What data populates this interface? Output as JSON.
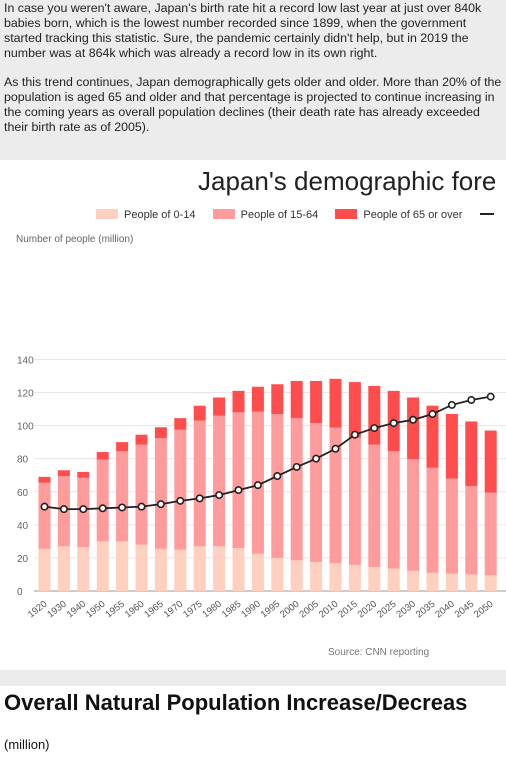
{
  "intro": {
    "paragraph1": "In case you weren't aware, Japan's birth rate hit a record low last year at just over 840k babies born, which is the lowest number recorded since 1899, when the government started tracking this statistic. Sure, the pandemic certainly didn't help, but in 2019 the number was at 864k which was already a record low in its own right.",
    "paragraph2": "As this trend continues, Japan demographically gets older and older. More than 20% of the population is aged 65 and older and that percentage is projected to continue increasing in the coming years as overall population declines (their death rate has already exceeded their birth rate as of 2005)."
  },
  "chart_data": {
    "type": "bar",
    "title": "Japan's demographic fore",
    "ylabel": "Number of people (million)",
    "source": "Source: CNN reporting",
    "ylim": [
      0,
      140
    ],
    "yticks": [
      0,
      20,
      40,
      60,
      80,
      100,
      120,
      140
    ],
    "stacked": true,
    "categories": [
      "1920",
      "1930",
      "1940",
      "1950",
      "1955",
      "1960",
      "1965",
      "1970",
      "1975",
      "1980",
      "1985",
      "1990",
      "1995",
      "2000",
      "2005",
      "2010",
      "2015",
      "2020",
      "2025",
      "2030",
      "2035",
      "2040",
      "2045",
      "2050"
    ],
    "series": [
      {
        "name": "People of 0-14",
        "color": "#ffd0bf",
        "values": [
          25.5,
          27,
          26.5,
          30,
          30,
          28,
          25.5,
          25,
          27,
          27,
          26,
          22.5,
          20,
          18.5,
          17.5,
          16.8,
          15.8,
          14.5,
          13.5,
          12.2,
          11,
          10.5,
          10,
          9.5
        ]
      },
      {
        "name": "People of 15-64",
        "color": "#ff9b9b",
        "values": [
          40,
          42.5,
          42,
          49.5,
          54.5,
          60.5,
          67,
          72.5,
          76,
          79,
          82,
          86,
          87,
          86,
          84,
          82,
          77,
          74,
          71,
          67.5,
          63.5,
          57.5,
          53.5,
          50
        ]
      },
      {
        "name": "People of 65 or over",
        "color": "#ff4c4c",
        "values": [
          3.5,
          3.5,
          3.5,
          4.5,
          5.5,
          6,
          6.5,
          7,
          9,
          11,
          13,
          15,
          18,
          22.5,
          25.5,
          29.5,
          33.5,
          35.5,
          36.5,
          37.3,
          37.5,
          39,
          39,
          37.5
        ]
      },
      {
        "name": "",
        "type": "line",
        "color": "#222222",
        "values": [
          51,
          49.5,
          49.5,
          50,
          50.5,
          51,
          52.5,
          54.5,
          56,
          58,
          61,
          64,
          69.5,
          75,
          80,
          86,
          94.5,
          98.5,
          101.5,
          103.5,
          107,
          112.5,
          115.5,
          117.5
        ]
      }
    ]
  },
  "heading": "Overall Natural Population Increase/Decreas",
  "subnote": "(million)"
}
